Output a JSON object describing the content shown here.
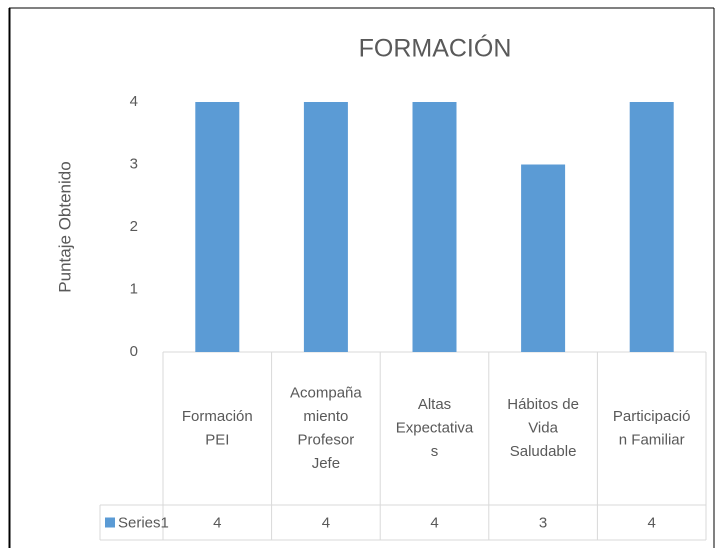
{
  "chart_data": {
    "type": "bar",
    "title": "FORMACIÓN",
    "y_label": "Puntaje Obtenido",
    "categories": [
      "Formación PEI",
      "Acompañamiento Profesor Jefe",
      "Altas Expectativas",
      "Hábitos de Vida Saludable",
      "Participación Familiar"
    ],
    "series": [
      {
        "name": "Series1",
        "color": "#5b9bd5",
        "values": [
          4,
          4,
          4,
          3,
          4
        ]
      }
    ],
    "ylim": [
      0,
      4
    ],
    "yticks": [
      0,
      1,
      2,
      3,
      4
    ],
    "grid": false,
    "data_table": true
  }
}
